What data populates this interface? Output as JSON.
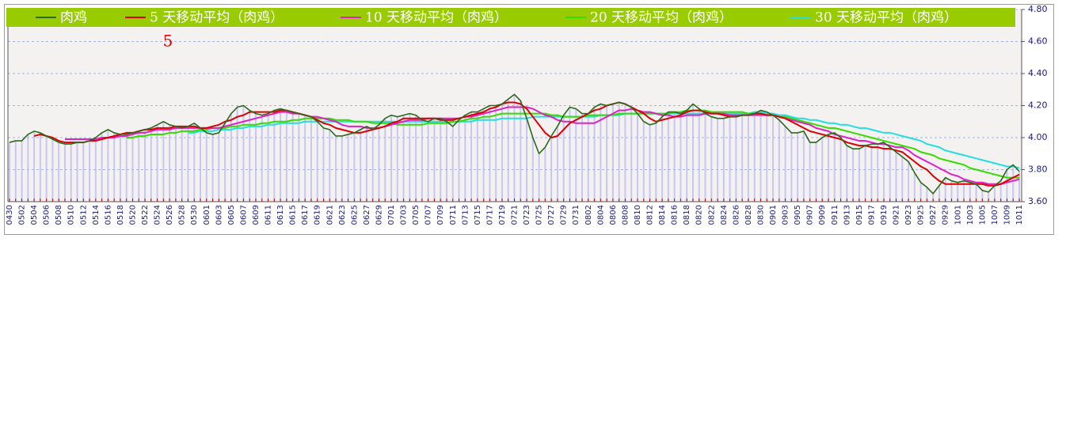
{
  "chart_data": {
    "type": "line",
    "annotation": "5",
    "legend": "top",
    "grid": true,
    "ylim": [
      3.6,
      4.8
    ],
    "yticks": [
      {
        "value": 4.8,
        "label": "4.80"
      },
      {
        "value": 4.6,
        "label": "4.60"
      },
      {
        "value": 4.4,
        "label": "4.40"
      },
      {
        "value": 4.2,
        "label": "4.20"
      },
      {
        "value": 4.0,
        "label": "4.00"
      },
      {
        "value": 3.8,
        "label": "3.80"
      },
      {
        "value": 3.6,
        "label": "3.60"
      }
    ],
    "categories": [
      "0430",
      null,
      "0502",
      null,
      "0504",
      null,
      "0506",
      null,
      "0508",
      null,
      "0510",
      null,
      "0512",
      null,
      "0514",
      null,
      "0516",
      null,
      "0518",
      null,
      "0520",
      null,
      "0522",
      null,
      "0524",
      null,
      "0526",
      null,
      "0528",
      null,
      "0530",
      null,
      "0601",
      null,
      "0603",
      null,
      "0605",
      null,
      "0607",
      null,
      "0609",
      null,
      "0611",
      null,
      "0613",
      null,
      "0615",
      null,
      "0617",
      null,
      "0619",
      null,
      "0621",
      null,
      "0623",
      null,
      "0625",
      null,
      "0627",
      null,
      "0629",
      null,
      "0701",
      null,
      "0703",
      null,
      "0705",
      null,
      "0707",
      null,
      "0709",
      null,
      "0711",
      null,
      "0713",
      null,
      "0715",
      null,
      "0717",
      null,
      "0719",
      null,
      "0721",
      null,
      "0723",
      null,
      "0725",
      null,
      "0727",
      null,
      "0729",
      null,
      "0731",
      null,
      "0802",
      null,
      "0804",
      null,
      "0806",
      null,
      "0808",
      null,
      "0810",
      null,
      "0812",
      null,
      "0814",
      null,
      "0816",
      null,
      "0818",
      null,
      "0820",
      null,
      "0822",
      null,
      "0824",
      null,
      "0826",
      null,
      "0828",
      null,
      "0830",
      null,
      "0901",
      null,
      "0903",
      null,
      "0905",
      null,
      "0907",
      null,
      "0909",
      null,
      "0911",
      null,
      "0913",
      null,
      "0915",
      null,
      "0917",
      null,
      "0919",
      null,
      "0921",
      null,
      "0923",
      null,
      "0925",
      null,
      "0927",
      null,
      "0929",
      null,
      "1001",
      null,
      "1003",
      null,
      "1005",
      null,
      "1007",
      null,
      "1009",
      null,
      "1011"
    ],
    "series": [
      {
        "name": "肉鸡",
        "color": "#2a6a1a",
        "values": [
          3.97,
          3.98,
          3.98,
          4.02,
          4.04,
          4.03,
          4.01,
          3.99,
          3.97,
          3.96,
          3.96,
          3.97,
          3.97,
          3.98,
          4.0,
          4.03,
          4.05,
          4.03,
          4.02,
          4.02,
          4.03,
          4.04,
          4.05,
          4.06,
          4.08,
          4.1,
          4.08,
          4.07,
          4.06,
          4.07,
          4.09,
          4.06,
          4.03,
          4.02,
          4.03,
          4.09,
          4.15,
          4.19,
          4.2,
          4.17,
          4.15,
          4.14,
          4.15,
          4.17,
          4.18,
          4.17,
          4.16,
          4.15,
          4.14,
          4.13,
          4.1,
          4.06,
          4.05,
          4.01,
          4.01,
          4.02,
          4.03,
          4.05,
          4.07,
          4.05,
          4.08,
          4.12,
          4.14,
          4.13,
          4.14,
          4.15,
          4.14,
          4.11,
          4.1,
          4.12,
          4.12,
          4.1,
          4.07,
          4.11,
          4.14,
          4.16,
          4.16,
          4.18,
          4.2,
          4.2,
          4.21,
          4.24,
          4.27,
          4.23,
          4.12,
          4.0,
          3.9,
          3.94,
          4.01,
          4.07,
          4.14,
          4.19,
          4.18,
          4.15,
          4.15,
          4.19,
          4.21,
          4.2,
          4.21,
          4.22,
          4.21,
          4.19,
          4.15,
          4.1,
          4.08,
          4.09,
          4.13,
          4.16,
          4.16,
          4.15,
          4.17,
          4.21,
          4.18,
          4.15,
          4.13,
          4.12,
          4.12,
          4.13,
          4.13,
          4.14,
          4.14,
          4.15,
          4.17,
          4.16,
          4.14,
          4.11,
          4.07,
          4.03,
          4.03,
          4.04,
          3.97,
          3.97,
          4.0,
          4.02,
          4.03,
          4.0,
          3.95,
          3.93,
          3.93,
          3.95,
          3.96,
          3.96,
          3.97,
          3.94,
          3.91,
          3.88,
          3.85,
          3.78,
          3.72,
          3.69,
          3.65,
          3.7,
          3.75,
          3.73,
          3.72,
          3.73,
          3.72,
          3.71,
          3.67,
          3.66,
          3.7,
          3.73,
          3.8,
          3.83,
          3.79
        ]
      },
      {
        "name": "5 天移动平均（肉鸡）",
        "color": "#dd0000",
        "values": [
          null,
          null,
          null,
          null,
          4.01,
          4.02,
          4.01,
          4.0,
          3.98,
          3.97,
          3.97,
          3.97,
          3.97,
          3.98,
          3.98,
          3.99,
          4.0,
          4.01,
          4.02,
          4.03,
          4.03,
          4.04,
          4.05,
          4.05,
          4.06,
          4.06,
          4.06,
          4.07,
          4.07,
          4.07,
          4.07,
          4.06,
          4.06,
          4.07,
          4.08,
          4.1,
          4.11,
          4.13,
          4.14,
          4.16,
          4.16,
          4.16,
          4.16,
          4.16,
          4.17,
          4.17,
          4.16,
          4.15,
          4.14,
          4.13,
          4.11,
          4.09,
          4.08,
          4.06,
          4.05,
          4.04,
          4.03,
          4.03,
          4.04,
          4.05,
          4.06,
          4.07,
          4.09,
          4.1,
          4.12,
          4.12,
          4.12,
          4.12,
          4.12,
          4.12,
          4.11,
          4.11,
          4.11,
          4.12,
          4.13,
          4.14,
          4.15,
          4.16,
          4.18,
          4.19,
          4.21,
          4.22,
          4.22,
          4.21,
          4.18,
          4.13,
          4.08,
          4.03,
          4.0,
          4.01,
          4.05,
          4.09,
          4.11,
          4.13,
          4.15,
          4.17,
          4.18,
          4.2,
          4.21,
          4.22,
          4.21,
          4.19,
          4.17,
          4.15,
          4.12,
          4.1,
          4.11,
          4.12,
          4.13,
          4.14,
          4.16,
          4.17,
          4.17,
          4.16,
          4.15,
          4.15,
          4.14,
          4.13,
          4.13,
          4.14,
          4.14,
          4.15,
          4.15,
          4.14,
          4.14,
          4.13,
          4.12,
          4.1,
          4.08,
          4.06,
          4.04,
          4.03,
          4.02,
          4.01,
          4.0,
          3.99,
          3.97,
          3.96,
          3.95,
          3.95,
          3.94,
          3.94,
          3.93,
          3.93,
          3.92,
          3.91,
          3.88,
          3.85,
          3.82,
          3.8,
          3.76,
          3.73,
          3.71,
          3.71,
          3.71,
          3.71,
          3.71,
          3.71,
          3.71,
          3.7,
          3.7,
          3.71,
          3.73,
          3.75,
          3.77
        ]
      },
      {
        "name": "10 天移动平均（肉鸡）",
        "color": "#e020c8",
        "values": [
          null,
          null,
          null,
          null,
          null,
          null,
          null,
          null,
          null,
          3.99,
          3.99,
          3.99,
          3.99,
          3.99,
          3.99,
          4.0,
          4.0,
          4.0,
          4.01,
          4.01,
          4.02,
          4.03,
          4.03,
          4.04,
          4.05,
          4.05,
          4.05,
          4.06,
          4.06,
          4.06,
          4.06,
          4.06,
          4.06,
          4.06,
          4.06,
          4.07,
          4.08,
          4.09,
          4.1,
          4.11,
          4.12,
          4.13,
          4.14,
          4.15,
          4.16,
          4.16,
          4.15,
          4.15,
          4.14,
          4.13,
          4.13,
          4.12,
          4.11,
          4.1,
          4.08,
          4.07,
          4.07,
          4.07,
          4.06,
          4.06,
          4.06,
          4.07,
          4.08,
          4.09,
          4.1,
          4.11,
          4.11,
          4.11,
          4.12,
          4.12,
          4.12,
          4.12,
          4.12,
          4.12,
          4.13,
          4.13,
          4.14,
          4.15,
          4.16,
          4.17,
          4.18,
          4.19,
          4.19,
          4.19,
          4.19,
          4.18,
          4.16,
          4.14,
          4.13,
          4.11,
          4.1,
          4.1,
          4.09,
          4.09,
          4.09,
          4.09,
          4.11,
          4.13,
          4.15,
          4.17,
          4.17,
          4.18,
          4.17,
          4.16,
          4.16,
          4.15,
          4.14,
          4.14,
          4.13,
          4.13,
          4.14,
          4.14,
          4.14,
          4.15,
          4.15,
          4.15,
          4.15,
          4.14,
          4.14,
          4.14,
          4.14,
          4.14,
          4.14,
          4.14,
          4.14,
          4.13,
          4.12,
          4.11,
          4.1,
          4.09,
          4.08,
          4.06,
          4.05,
          4.04,
          4.02,
          4.01,
          4.0,
          3.99,
          3.98,
          3.98,
          3.97,
          3.96,
          3.96,
          3.95,
          3.94,
          3.94,
          3.92,
          3.89,
          3.87,
          3.85,
          3.83,
          3.81,
          3.79,
          3.77,
          3.76,
          3.74,
          3.73,
          3.72,
          3.72,
          3.71,
          3.71,
          3.71,
          3.72,
          3.73,
          3.74
        ]
      },
      {
        "name": "20 天移动平均（肉鸡）",
        "color": "#33dd00",
        "values": [
          null,
          null,
          null,
          null,
          null,
          null,
          null,
          null,
          null,
          null,
          null,
          null,
          null,
          null,
          null,
          null,
          null,
          null,
          null,
          4.0,
          4.0,
          4.01,
          4.01,
          4.02,
          4.02,
          4.02,
          4.03,
          4.03,
          4.04,
          4.04,
          4.04,
          4.05,
          4.05,
          4.06,
          4.06,
          4.06,
          4.07,
          4.07,
          4.08,
          4.08,
          4.08,
          4.09,
          4.09,
          4.1,
          4.1,
          4.1,
          4.11,
          4.11,
          4.12,
          4.12,
          4.12,
          4.12,
          4.12,
          4.11,
          4.11,
          4.11,
          4.1,
          4.1,
          4.1,
          4.09,
          4.09,
          4.09,
          4.09,
          4.08,
          4.08,
          4.08,
          4.08,
          4.08,
          4.09,
          4.09,
          4.09,
          4.09,
          4.1,
          4.1,
          4.11,
          4.12,
          4.12,
          4.13,
          4.13,
          4.14,
          4.15,
          4.15,
          4.15,
          4.15,
          4.15,
          4.15,
          4.15,
          4.15,
          4.14,
          4.14,
          4.13,
          4.13,
          4.13,
          4.13,
          4.14,
          4.14,
          4.14,
          4.14,
          4.14,
          4.15,
          4.15,
          4.15,
          4.15,
          4.15,
          4.15,
          4.15,
          4.15,
          4.15,
          4.16,
          4.16,
          4.17,
          4.17,
          4.17,
          4.17,
          4.16,
          4.16,
          4.16,
          4.16,
          4.16,
          4.16,
          4.15,
          4.15,
          4.15,
          4.14,
          4.14,
          4.13,
          4.13,
          4.12,
          4.11,
          4.1,
          4.09,
          4.08,
          4.07,
          4.06,
          4.06,
          4.05,
          4.04,
          4.03,
          4.02,
          4.01,
          4.0,
          3.99,
          3.98,
          3.97,
          3.96,
          3.95,
          3.94,
          3.93,
          3.91,
          3.9,
          3.89,
          3.87,
          3.86,
          3.85,
          3.84,
          3.83,
          3.81,
          3.8,
          3.79,
          3.78,
          3.77,
          3.76,
          3.75,
          3.75,
          3.75
        ]
      },
      {
        "name": "30 天移动平均（肉鸡）",
        "color": "#22e0e0",
        "values": [
          null,
          null,
          null,
          null,
          null,
          null,
          null,
          null,
          null,
          null,
          null,
          null,
          null,
          null,
          null,
          null,
          null,
          null,
          null,
          null,
          null,
          null,
          null,
          null,
          null,
          null,
          null,
          null,
          null,
          4.03,
          4.03,
          4.04,
          4.04,
          4.04,
          4.05,
          4.05,
          4.05,
          4.06,
          4.06,
          4.07,
          4.07,
          4.07,
          4.08,
          4.08,
          4.09,
          4.09,
          4.09,
          4.09,
          4.1,
          4.1,
          4.1,
          4.1,
          4.1,
          4.1,
          4.1,
          4.1,
          4.1,
          4.1,
          4.1,
          4.1,
          4.1,
          4.1,
          4.1,
          4.1,
          4.1,
          4.1,
          4.1,
          4.1,
          4.1,
          4.1,
          4.1,
          4.1,
          4.1,
          4.1,
          4.1,
          4.1,
          4.11,
          4.11,
          4.11,
          4.11,
          4.12,
          4.12,
          4.12,
          4.12,
          4.12,
          4.13,
          4.13,
          4.13,
          4.13,
          4.13,
          4.13,
          4.13,
          4.13,
          4.13,
          4.13,
          4.13,
          4.14,
          4.14,
          4.14,
          4.14,
          4.15,
          4.15,
          4.15,
          4.15,
          4.15,
          4.15,
          4.15,
          4.15,
          4.15,
          4.15,
          4.15,
          4.15,
          4.15,
          4.15,
          4.15,
          4.15,
          4.15,
          4.15,
          4.15,
          4.15,
          4.15,
          4.16,
          4.16,
          4.15,
          4.15,
          4.14,
          4.14,
          4.13,
          4.12,
          4.12,
          4.11,
          4.11,
          4.1,
          4.09,
          4.09,
          4.08,
          4.08,
          4.07,
          4.06,
          4.06,
          4.05,
          4.04,
          4.03,
          4.03,
          4.02,
          4.01,
          4.0,
          3.99,
          3.98,
          3.96,
          3.95,
          3.94,
          3.92,
          3.91,
          3.9,
          3.89,
          3.88,
          3.87,
          3.86,
          3.85,
          3.84,
          3.83,
          3.82,
          3.82,
          3.81
        ]
      }
    ]
  }
}
